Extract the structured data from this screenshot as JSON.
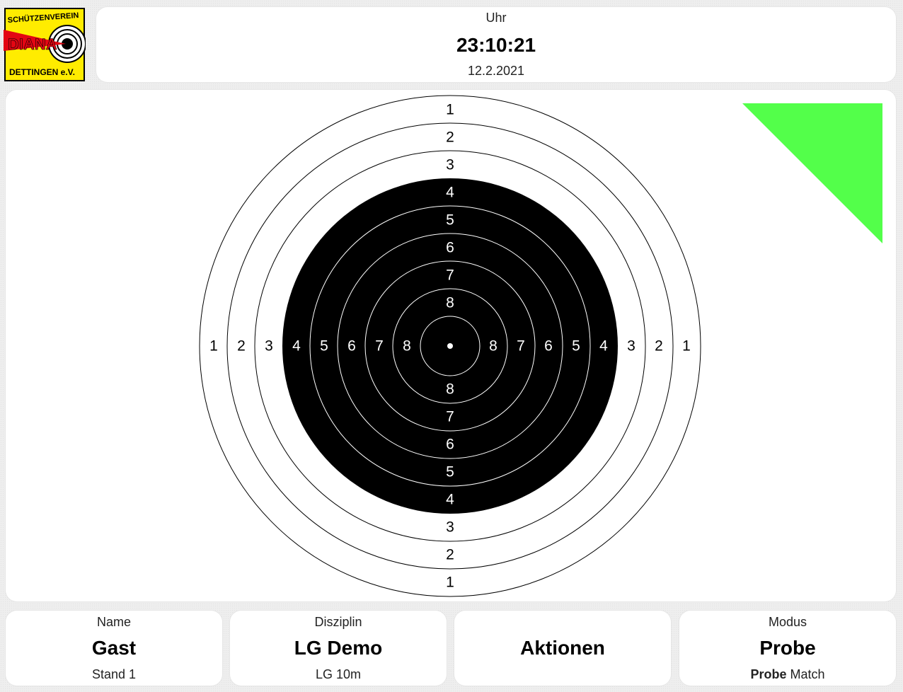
{
  "logo": {
    "line1": "SCHÜTZENVEREIN",
    "line2": "DIANA",
    "line3": "DETTINGEN e.V."
  },
  "clock": {
    "label": "Uhr",
    "time": "23:10:21",
    "date": "12.2.2021"
  },
  "target": {
    "ring_labels": [
      "1",
      "2",
      "3",
      "4",
      "5",
      "6",
      "7",
      "8"
    ],
    "status_color": "#53ff4a"
  },
  "name": {
    "label": "Name",
    "value": "Gast",
    "sub": "Stand 1"
  },
  "discipline": {
    "label": "Disziplin",
    "value": "LG Demo",
    "sub": "LG 10m"
  },
  "actions": {
    "label": "Aktionen"
  },
  "mode": {
    "label": "Modus",
    "value": "Probe",
    "sub_active": "Probe",
    "sub_other": "Match"
  }
}
